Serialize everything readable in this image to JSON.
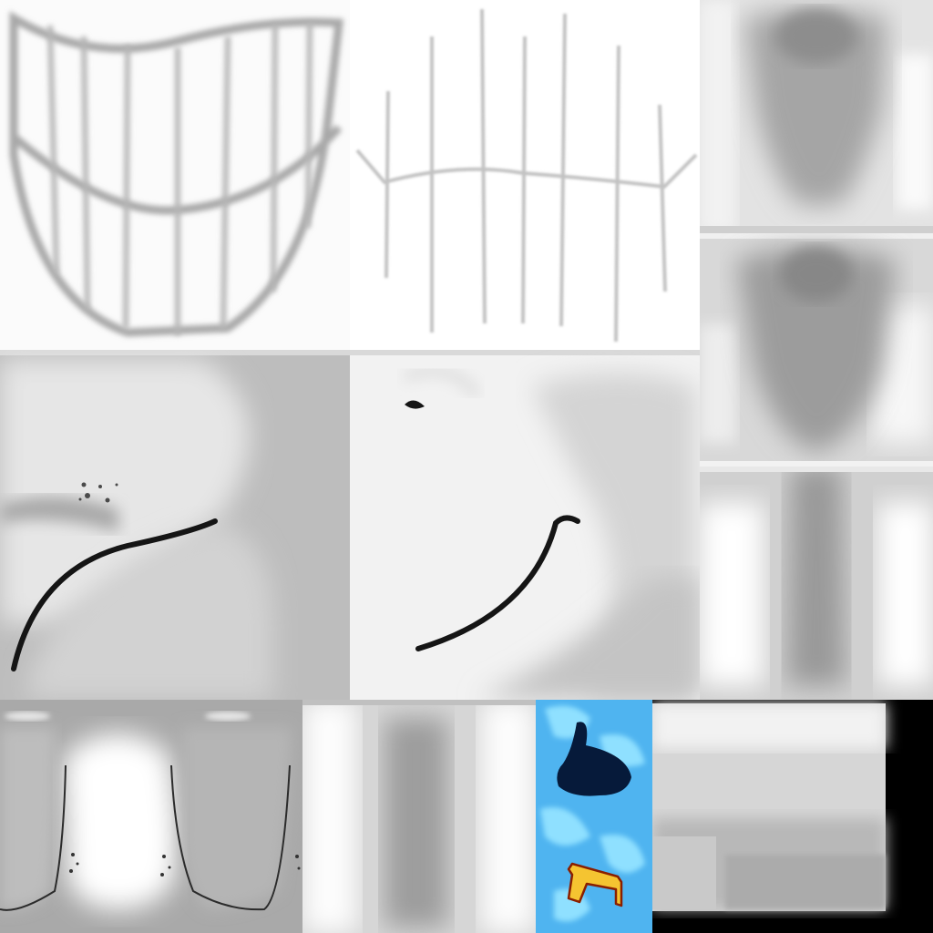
{
  "atlas": {
    "tiles": [
      {
        "name": "teeth-grin",
        "kind": "texture"
      },
      {
        "name": "tooth-lines",
        "kind": "texture"
      },
      {
        "name": "torso-shade-a",
        "kind": "texture"
      },
      {
        "name": "torso-shade-b",
        "kind": "texture"
      },
      {
        "name": "torso-shade-c",
        "kind": "texture"
      },
      {
        "name": "cheek-left",
        "kind": "texture"
      },
      {
        "name": "cheek-right",
        "kind": "texture"
      },
      {
        "name": "gum-strip",
        "kind": "texture"
      },
      {
        "name": "neck-shade",
        "kind": "texture"
      },
      {
        "name": "eye-decal",
        "kind": "texture"
      },
      {
        "name": "cap-shade",
        "kind": "texture"
      }
    ]
  },
  "colors": {
    "background": "#000000",
    "eye_blue": "#4fb4f0",
    "eye_light": "#8fe0ff",
    "pupil": "#061a3a",
    "decal_yellow": "#f5c431",
    "decal_outline": "#8a1f00",
    "stroke_dark": "#151515",
    "line_grey": "#b8b8b8"
  }
}
